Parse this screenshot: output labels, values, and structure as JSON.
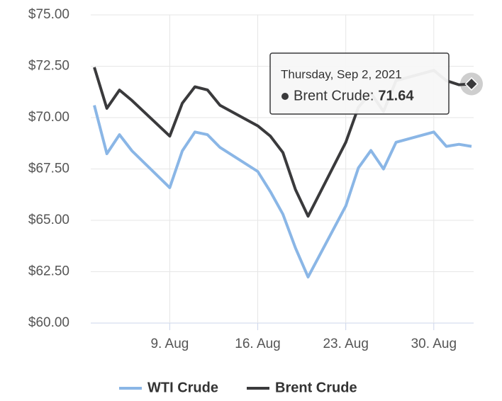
{
  "chart_data": {
    "type": "line",
    "x": [
      "3. Aug",
      "4. Aug",
      "5. Aug",
      "6. Aug",
      "9. Aug",
      "10. Aug",
      "11. Aug",
      "12. Aug",
      "13. Aug",
      "16. Aug",
      "17. Aug",
      "18. Aug",
      "19. Aug",
      "20. Aug",
      "23. Aug",
      "24. Aug",
      "25. Aug",
      "26. Aug",
      "27. Aug",
      "30. Aug",
      "31. Aug",
      "1. Sep",
      "2. Sep"
    ],
    "series": [
      {
        "name": "WTI Crude",
        "color": "#8ab6e6",
        "values": [
          70.6,
          68.24,
          69.17,
          68.38,
          66.59,
          68.38,
          69.3,
          69.17,
          68.55,
          67.38,
          66.4,
          65.3,
          63.66,
          62.24,
          65.7,
          67.55,
          68.4,
          67.5,
          68.8,
          69.3,
          68.6,
          68.7,
          68.6
        ]
      },
      {
        "name": "Brent Crude",
        "color": "#3a3a3c",
        "values": [
          72.45,
          70.45,
          71.34,
          70.83,
          69.1,
          70.7,
          71.5,
          71.35,
          70.6,
          69.6,
          69.1,
          68.3,
          66.5,
          65.2,
          68.8,
          70.5,
          71.2,
          70.3,
          71.8,
          72.3,
          71.8,
          71.6,
          71.64
        ]
      }
    ],
    "xlim": [
      "3. Aug",
      "2. Sep"
    ],
    "xticks": [
      "9. Aug",
      "16. Aug",
      "23. Aug",
      "30. Aug"
    ],
    "ylim": [
      60,
      75
    ],
    "yticks": [
      {
        "value": 60,
        "label": "$60.00"
      },
      {
        "value": 62.5,
        "label": "$62.50"
      },
      {
        "value": 65,
        "label": "$65.00"
      },
      {
        "value": 67.5,
        "label": "$67.50"
      },
      {
        "value": 70,
        "label": "$70.00"
      },
      {
        "value": 72.5,
        "label": "$72.50"
      },
      {
        "value": 75,
        "label": "$75.00"
      }
    ],
    "grid": true,
    "legend": "bottom",
    "tooltip": {
      "date": "Thursday, Sep 2, 2021",
      "label": "Brent Crude:",
      "value": 71.64
    }
  }
}
